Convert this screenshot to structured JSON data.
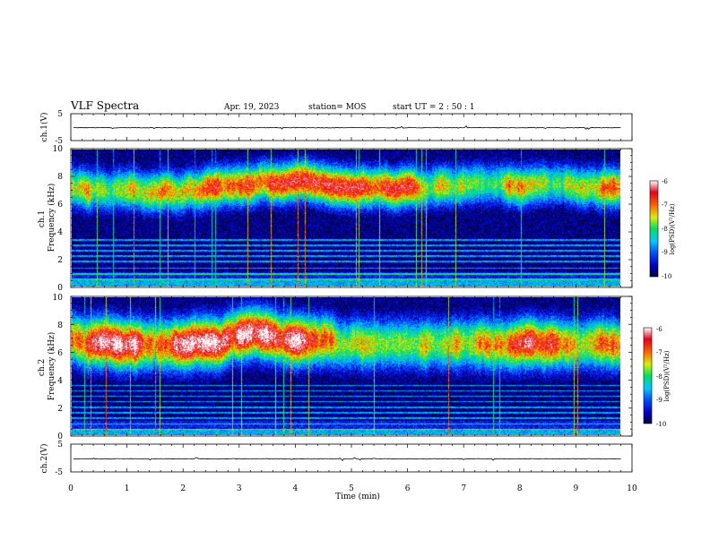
{
  "header": {
    "title": "VLF Spectra",
    "date": "Apr. 19, 2023",
    "station": "station= MOS",
    "start_ut": "start  UT =  2 : 50 : 1"
  },
  "chart_data": [
    {
      "type": "line",
      "name": "ch1-waveform",
      "ylabel": "ch.1(V)",
      "ylim": [
        -5,
        5
      ],
      "yticks": [
        "5",
        "-5"
      ],
      "xlim": [
        0,
        10
      ],
      "series": [
        {
          "name": "ch.1 voltage",
          "level": -0.2,
          "noise": 0.25
        }
      ]
    },
    {
      "type": "heatmap",
      "name": "ch1-spectrogram",
      "ylabel": "ch.1\nFrequency (kHz)",
      "ylim": [
        0,
        10
      ],
      "yticks": [
        "0",
        "2",
        "4",
        "6",
        "8",
        "10"
      ],
      "xlim": [
        0,
        9.82
      ],
      "band_center_khz": 7.3,
      "band_width_khz": 1.6,
      "band_floor_khz": 4.6,
      "hiss_intensity": 0.85,
      "line_frequencies_khz": [
        0.5,
        0.9,
        1.3,
        1.8,
        2.2,
        2.6,
        3.0,
        3.4
      ],
      "colorbar": {
        "label": "log(PSD)(V²/Hz)",
        "min": -10,
        "max": -6,
        "ticks": [
          "-6",
          "-7",
          "-8",
          "-9",
          "-10"
        ]
      }
    },
    {
      "type": "heatmap",
      "name": "ch2-spectrogram",
      "ylabel": "ch.2\nFrequency (kHz)",
      "ylim": [
        0,
        10
      ],
      "yticks": [
        "0",
        "2",
        "4",
        "6",
        "8",
        "10"
      ],
      "xlim": [
        0,
        9.82
      ],
      "band_center_khz": 7.0,
      "band_width_khz": 2.0,
      "band_floor_khz": 3.8,
      "hiss_intensity": 1.0,
      "line_frequencies_khz": [
        0.4,
        0.8,
        1.2,
        1.6,
        2.0,
        2.4,
        2.8,
        3.2,
        3.6
      ],
      "colorbar": {
        "label": "log(PSD)(V²/Hz)",
        "min": -10,
        "max": -6,
        "ticks": [
          "-6",
          "-7",
          "-8",
          "-9",
          "-10"
        ]
      }
    },
    {
      "type": "line",
      "name": "ch2-waveform",
      "ylabel": "ch.2(V)",
      "ylim": [
        -5,
        5
      ],
      "yticks": [
        "5",
        "-5"
      ],
      "xlim": [
        0,
        10
      ],
      "series": [
        {
          "name": "ch.2 voltage",
          "level": -0.3,
          "noise": 0.2
        }
      ]
    }
  ],
  "xaxis": {
    "label": "Time  (min)",
    "ticks": [
      "0",
      "1",
      "2",
      "3",
      "4",
      "5",
      "6",
      "7",
      "8",
      "9",
      "10"
    ],
    "range": [
      0,
      10
    ]
  },
  "colors": {
    "colormap": [
      "#00003a",
      "#0000d0",
      "#0050ff",
      "#00c8ff",
      "#00e060",
      "#d8f000",
      "#ff6000",
      "#e8001c",
      "#ffffff"
    ]
  }
}
